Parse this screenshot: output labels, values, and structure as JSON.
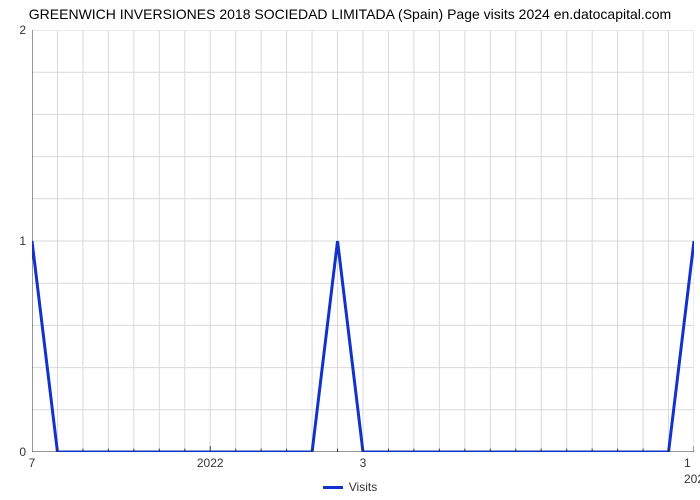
{
  "title": "GREENWICH INVERSIONES 2018 SOCIEDAD LIMITADA (Spain) Page visits 2024 en.datocapital.com",
  "chart": {
    "type": "line",
    "background_color": "#ffffff",
    "grid_color": "#d9d9d9",
    "axis_color": "#333333",
    "series": {
      "label": "Visits",
      "color": "#1133cc",
      "line_width": 3,
      "x": [
        0,
        1,
        2,
        3,
        4,
        5,
        6,
        7,
        8,
        9,
        10,
        11,
        12,
        13,
        14,
        15,
        16,
        17,
        18,
        19,
        20,
        21,
        22,
        23,
        24,
        25,
        26
      ],
      "y": [
        1,
        0,
        0,
        0,
        0,
        0,
        0,
        0,
        0,
        0,
        0,
        0,
        1,
        0,
        0,
        0,
        0,
        0,
        0,
        0,
        0,
        0,
        0,
        0,
        0,
        0,
        1
      ]
    },
    "xlim": [
      0,
      26
    ],
    "ylim": [
      0,
      2
    ],
    "y_ticks": [
      {
        "v": 0,
        "label": "0"
      },
      {
        "v": 1,
        "label": "1"
      },
      {
        "v": 2,
        "label": "2"
      }
    ],
    "y_minor_count": 4,
    "x_ticks_major": [
      {
        "x": 0,
        "label": "7"
      },
      {
        "x": 7,
        "label": "2022"
      },
      {
        "x": 13,
        "label": "3"
      },
      {
        "x": 26,
        "label": "1"
      },
      {
        "x": 26,
        "label": "202"
      }
    ],
    "x_ticks_minor": [
      1,
      2,
      3,
      4,
      5,
      6,
      8,
      9,
      10,
      11,
      12,
      14,
      15,
      16,
      17,
      18,
      19,
      20,
      21,
      22,
      23,
      24,
      25
    ],
    "title_fontsize": 14,
    "tick_fontsize": 12
  }
}
